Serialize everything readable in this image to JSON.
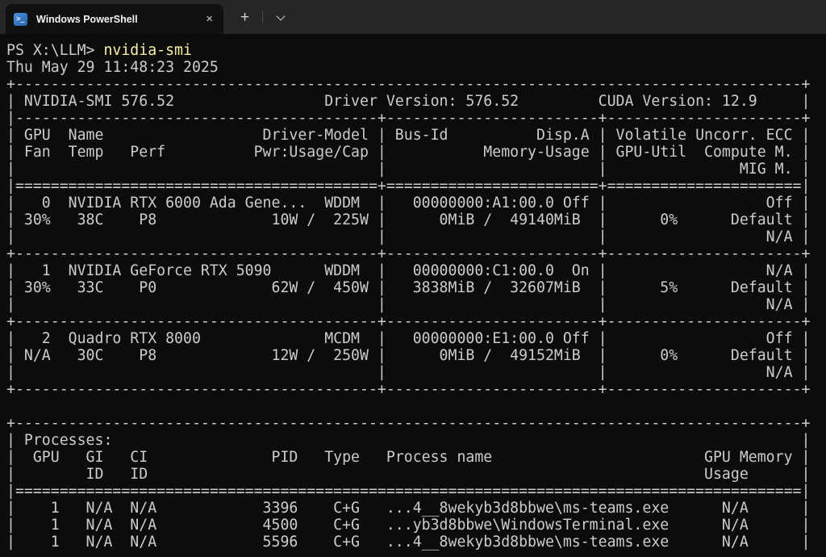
{
  "window": {
    "tab_title": "Windows PowerShell",
    "tab_close_glyph": "×",
    "new_tab_glyph": "+",
    "ps_icon_glyph": ">_"
  },
  "colors": {
    "terminal_bg": "#0C0C0C",
    "tabbar_bg": "#262626",
    "active_tab_bg": "#101010",
    "text": "#CCCCCC",
    "command_yellow": "#F9F1A5",
    "ps_icon_blue": "#3B7CC9"
  },
  "terminal": {
    "prompt": "PS X:\\LLM> ",
    "command": "nvidia-smi",
    "lines": [
      "Thu May 29 11:48:23 2025",
      "+-----------------------------------------------------------------------------------------+",
      "| NVIDIA-SMI 576.52                 Driver Version: 576.52         CUDA Version: 12.9     |",
      "|-----------------------------------------+------------------------+----------------------+",
      "| GPU  Name                  Driver-Model | Bus-Id          Disp.A | Volatile Uncorr. ECC |",
      "| Fan  Temp   Perf          Pwr:Usage/Cap |           Memory-Usage | GPU-Util  Compute M. |",
      "|                                         |                        |               MIG M. |",
      "|=========================================+========================+======================|",
      "|   0  NVIDIA RTX 6000 Ada Gene...  WDDM  |   00000000:A1:00.0 Off |                  Off |",
      "| 30%   38C    P8             10W /  225W |      0MiB /  49140MiB  |      0%      Default |",
      "|                                         |                        |                  N/A |",
      "+-----------------------------------------+------------------------+----------------------+",
      "|   1  NVIDIA GeForce RTX 5090      WDDM  |   00000000:C1:00.0  On |                  N/A |",
      "| 30%   33C    P0             62W /  450W |   3838MiB /  32607MiB  |      5%      Default |",
      "|                                         |                        |                  N/A |",
      "+-----------------------------------------+------------------------+----------------------+",
      "|   2  Quadro RTX 8000              MCDM  |   00000000:E1:00.0 Off |                  Off |",
      "| N/A   30C    P8             12W /  250W |      0MiB /  49152MiB  |      0%      Default |",
      "|                                         |                        |                  N/A |",
      "+-----------------------------------------+------------------------+----------------------+",
      "",
      "+-----------------------------------------------------------------------------------------+",
      "| Processes:                                                                              |",
      "|  GPU   GI   CI              PID   Type   Process name                        GPU Memory |",
      "|        ID   ID                                                               Usage      |",
      "|=========================================================================================|",
      "|    1   N/A  N/A            3396    C+G   ...4__8wekyb3d8bbwe\\ms-teams.exe      N/A      |",
      "|    1   N/A  N/A            4500    C+G   ...yb3d8bbwe\\WindowsTerminal.exe      N/A      |",
      "|    1   N/A  N/A            5596    C+G   ...4__8wekyb3d8bbwe\\ms-teams.exe      N/A      |"
    ]
  },
  "nvidia_smi": {
    "smi_version": "576.52",
    "driver_version": "576.52",
    "cuda_version": "12.9",
    "gpus": [
      {
        "id": "0",
        "name": "NVIDIA RTX 6000 Ada Gene...",
        "driver_model": "WDDM",
        "fan": "30%",
        "temp": "38C",
        "perf": "P8",
        "power_usage": "10W / 225W",
        "bus_id": "00000000:A1:00.0",
        "disp_a": "Off",
        "memory_usage": "0MiB / 49140MiB",
        "gpu_util": "0%",
        "compute_mode": "Default",
        "uncorr_ecc": "Off",
        "mig_mode": "N/A"
      },
      {
        "id": "1",
        "name": "NVIDIA GeForce RTX 5090",
        "driver_model": "WDDM",
        "fan": "30%",
        "temp": "33C",
        "perf": "P0",
        "power_usage": "62W / 450W",
        "bus_id": "00000000:C1:00.0",
        "disp_a": "On",
        "memory_usage": "3838MiB / 32607MiB",
        "gpu_util": "5%",
        "compute_mode": "Default",
        "uncorr_ecc": "N/A",
        "mig_mode": "N/A"
      },
      {
        "id": "2",
        "name": "Quadro RTX 8000",
        "driver_model": "MCDM",
        "fan": "N/A",
        "temp": "30C",
        "perf": "P8",
        "power_usage": "12W / 250W",
        "bus_id": "00000000:E1:00.0",
        "disp_a": "Off",
        "memory_usage": "0MiB / 49152MiB",
        "gpu_util": "0%",
        "compute_mode": "Default",
        "uncorr_ecc": "Off",
        "mig_mode": "N/A"
      }
    ],
    "processes": [
      {
        "gpu": "1",
        "gi_id": "N/A",
        "ci_id": "N/A",
        "pid": "3396",
        "type": "C+G",
        "process_name": "...4__8wekyb3d8bbwe\\ms-teams.exe",
        "gpu_memory_usage": "N/A"
      },
      {
        "gpu": "1",
        "gi_id": "N/A",
        "ci_id": "N/A",
        "pid": "4500",
        "type": "C+G",
        "process_name": "...yb3d8bbwe\\WindowsTerminal.exe",
        "gpu_memory_usage": "N/A"
      },
      {
        "gpu": "1",
        "gi_id": "N/A",
        "ci_id": "N/A",
        "pid": "5596",
        "type": "C+G",
        "process_name": "...4__8wekyb3d8bbwe\\ms-teams.exe",
        "gpu_memory_usage": "N/A"
      }
    ]
  }
}
